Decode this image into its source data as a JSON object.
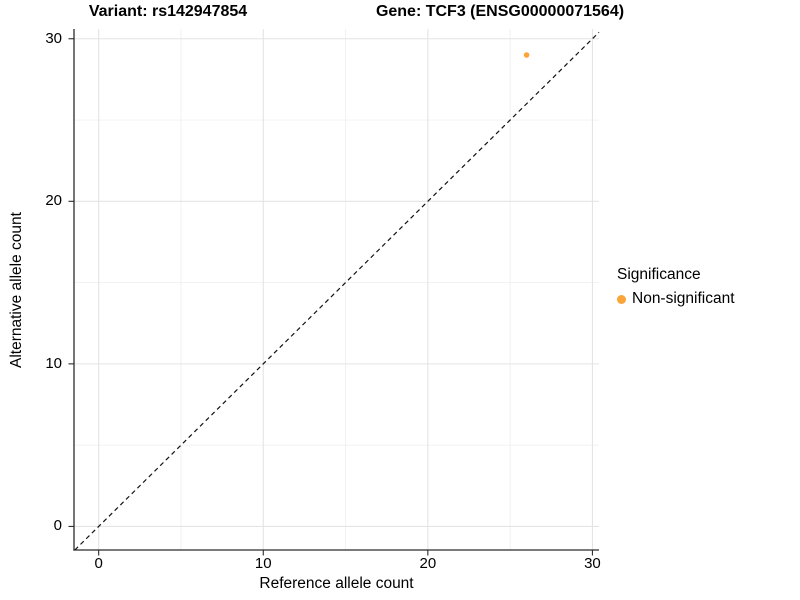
{
  "titles": {
    "variant": "Variant: rs142947854",
    "gene": "Gene: TCF3 (ENSG00000071564)"
  },
  "x_axis": {
    "label": "Reference allele count",
    "ticks": [
      "0",
      "10",
      "20",
      "30"
    ]
  },
  "y_axis": {
    "label": "Alternative allele count",
    "ticks": [
      "0",
      "10",
      "20",
      "30"
    ]
  },
  "legend": {
    "title": "Significance",
    "items": [
      {
        "label": "Non-significant",
        "color": "#FAA43A"
      }
    ]
  },
  "colors": {
    "point": "#FAA43A",
    "grid_major": "#E4E4E4",
    "grid_minor": "#F0F0F0",
    "axis_line": "#2B2B2B",
    "reference_line": "#111111",
    "background": "#FFFFFF"
  },
  "chart_data": {
    "type": "scatter",
    "title": "Variant: rs142947854 | Gene: TCF3 (ENSG00000071564)",
    "xlabel": "Reference allele count",
    "ylabel": "Alternative allele count",
    "xlim": [
      -1.5,
      30.4
    ],
    "ylim": [
      -1.45,
      30.6
    ],
    "x_major_ticks": [
      0,
      10,
      20,
      30
    ],
    "x_minor_ticks": [
      5,
      15,
      25
    ],
    "y_major_ticks": [
      0,
      10,
      20,
      30
    ],
    "y_minor_ticks": [
      5,
      15,
      25
    ],
    "grid": true,
    "legend_position": "right",
    "legend_title": "Significance",
    "reference_line": {
      "type": "identity",
      "style": "dashed",
      "color": "#111111"
    },
    "series": [
      {
        "name": "Non-significant",
        "color": "#FAA43A",
        "points": [
          [
            26,
            29
          ]
        ]
      }
    ]
  }
}
